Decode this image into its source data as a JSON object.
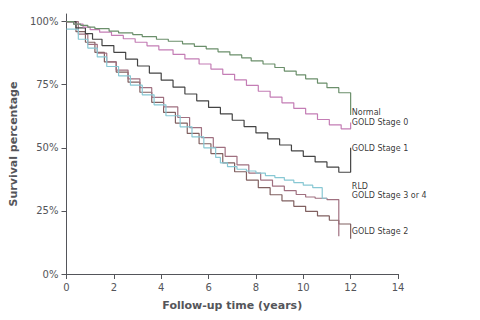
{
  "chart_data": {
    "type": "step",
    "xlabel": "Follow-up time (years)",
    "ylabel": "Survival percentage",
    "xlim": [
      0,
      14
    ],
    "ylim": [
      0,
      1.03
    ],
    "xticks": [
      0,
      2,
      4,
      6,
      8,
      10,
      12,
      14
    ],
    "yticks": [
      {
        "value": 0,
        "label": "0%"
      },
      {
        "value": 0.25,
        "label": "25%"
      },
      {
        "value": 0.5,
        "label": "50%"
      },
      {
        "value": 0.75,
        "label": "75%"
      },
      {
        "value": 1.0,
        "label": "100%"
      }
    ],
    "grid": false,
    "series": [
      {
        "name": "GOLD Stage 2",
        "color": "#806060",
        "x": [
          0,
          0.4,
          0.8,
          1.2,
          1.6,
          2.1,
          2.6,
          3.1,
          3.6,
          4.1,
          4.6,
          5.1,
          5.6,
          6.1,
          6.6,
          7.1,
          7.6,
          8.1,
          8.6,
          9.1,
          9.6,
          10.1,
          10.6,
          11.1,
          11.5,
          12.0
        ],
        "values": [
          1.0,
          0.96,
          0.918,
          0.878,
          0.84,
          0.8,
          0.76,
          0.72,
          0.68,
          0.64,
          0.598,
          0.557,
          0.516,
          0.477,
          0.44,
          0.405,
          0.372,
          0.342,
          0.314,
          0.29,
          0.268,
          0.248,
          0.23,
          0.213,
          0.198,
          0.14
        ]
      },
      {
        "name": "RLD",
        "color": "#a07080",
        "x": [
          0,
          0.5,
          0.9,
          1.3,
          1.7,
          2.1,
          2.6,
          3.1,
          3.6,
          4.1,
          4.7,
          5.2,
          5.7,
          6.2,
          6.7,
          7.2,
          7.7,
          8.2,
          8.7,
          9.2,
          9.7,
          10.1,
          10.5,
          11.0,
          11.5
        ],
        "values": [
          1.0,
          0.95,
          0.91,
          0.875,
          0.84,
          0.808,
          0.773,
          0.738,
          0.7,
          0.662,
          0.62,
          0.58,
          0.54,
          0.502,
          0.466,
          0.432,
          0.4,
          0.372,
          0.348,
          0.33,
          0.315,
          0.305,
          0.3,
          0.295,
          0.15
        ]
      },
      {
        "name": "GOLD Stage 3 or 4",
        "color": "#88c8d4",
        "x": [
          0,
          0.5,
          0.9,
          1.3,
          1.7,
          2.2,
          2.7,
          3.2,
          3.7,
          4.2,
          4.8,
          5.3,
          5.8,
          6.3,
          6.5,
          6.8,
          7.2,
          7.6,
          8.0,
          8.4,
          8.8,
          9.2,
          9.6,
          10.0,
          10.4,
          10.8,
          11.0
        ],
        "values": [
          0.97,
          0.93,
          0.895,
          0.86,
          0.822,
          0.785,
          0.748,
          0.71,
          0.67,
          0.627,
          0.583,
          0.543,
          0.5,
          0.462,
          0.44,
          0.425,
          0.415,
          0.408,
          0.4,
          0.39,
          0.382,
          0.372,
          0.362,
          0.352,
          0.342,
          0.3,
          0.3
        ]
      },
      {
        "name": "GOLD Stage 1",
        "color": "#444444",
        "x": [
          0,
          0.4,
          0.8,
          1.1,
          1.5,
          2.0,
          2.5,
          3.0,
          3.5,
          4.0,
          4.5,
          5.0,
          5.5,
          6.0,
          6.5,
          7.0,
          7.5,
          8.0,
          8.5,
          9.0,
          9.5,
          10.0,
          10.5,
          11.0,
          11.5,
          12.0
        ],
        "values": [
          1.0,
          0.975,
          0.952,
          0.93,
          0.905,
          0.878,
          0.851,
          0.824,
          0.796,
          0.768,
          0.74,
          0.713,
          0.686,
          0.66,
          0.634,
          0.609,
          0.584,
          0.559,
          0.535,
          0.511,
          0.488,
          0.466,
          0.444,
          0.423,
          0.403,
          0.5
        ]
      },
      {
        "name": "GOLD Stage 0",
        "color": "#c47db5",
        "x": [
          0,
          0.3,
          0.7,
          1.0,
          1.4,
          1.9,
          2.4,
          2.9,
          3.4,
          3.9,
          4.5,
          5.0,
          5.6,
          6.1,
          6.6,
          7.1,
          7.6,
          8.1,
          8.6,
          9.1,
          9.6,
          10.1,
          10.6,
          11.1,
          11.6,
          12.0
        ],
        "values": [
          1.0,
          0.99,
          0.978,
          0.968,
          0.958,
          0.945,
          0.932,
          0.918,
          0.904,
          0.888,
          0.87,
          0.852,
          0.832,
          0.812,
          0.791,
          0.769,
          0.747,
          0.724,
          0.701,
          0.678,
          0.656,
          0.634,
          0.612,
          0.591,
          0.575,
          0.6
        ]
      },
      {
        "name": "Normal",
        "color": "#6b8f6b",
        "x": [
          0,
          0.3,
          0.6,
          0.9,
          1.2,
          1.8,
          2.2,
          2.8,
          3.2,
          3.8,
          4.3,
          4.9,
          5.4,
          5.9,
          6.4,
          6.9,
          7.4,
          7.8,
          8.3,
          8.8,
          9.2,
          9.7,
          10.1,
          10.6,
          11.0,
          11.5,
          12.0
        ],
        "values": [
          1.0,
          0.99,
          0.985,
          0.978,
          0.972,
          0.962,
          0.955,
          0.948,
          0.94,
          0.93,
          0.922,
          0.912,
          0.902,
          0.892,
          0.88,
          0.868,
          0.856,
          0.844,
          0.832,
          0.818,
          0.804,
          0.789,
          0.773,
          0.756,
          0.738,
          0.718,
          0.63
        ]
      }
    ],
    "annotations": [
      {
        "text": "Normal",
        "x": 12.05,
        "y": 0.64
      },
      {
        "text": "GOLD Stage 0",
        "x": 12.05,
        "y": 0.6
      },
      {
        "text": "GOLD Stage 1",
        "x": 12.05,
        "y": 0.498
      },
      {
        "text": "RLD",
        "x": 12.05,
        "y": 0.348
      },
      {
        "text": "GOLD Stage 3 or 4",
        "x": 12.05,
        "y": 0.31
      },
      {
        "text": "GOLD Stage 2",
        "x": 12.05,
        "y": 0.17
      }
    ]
  }
}
